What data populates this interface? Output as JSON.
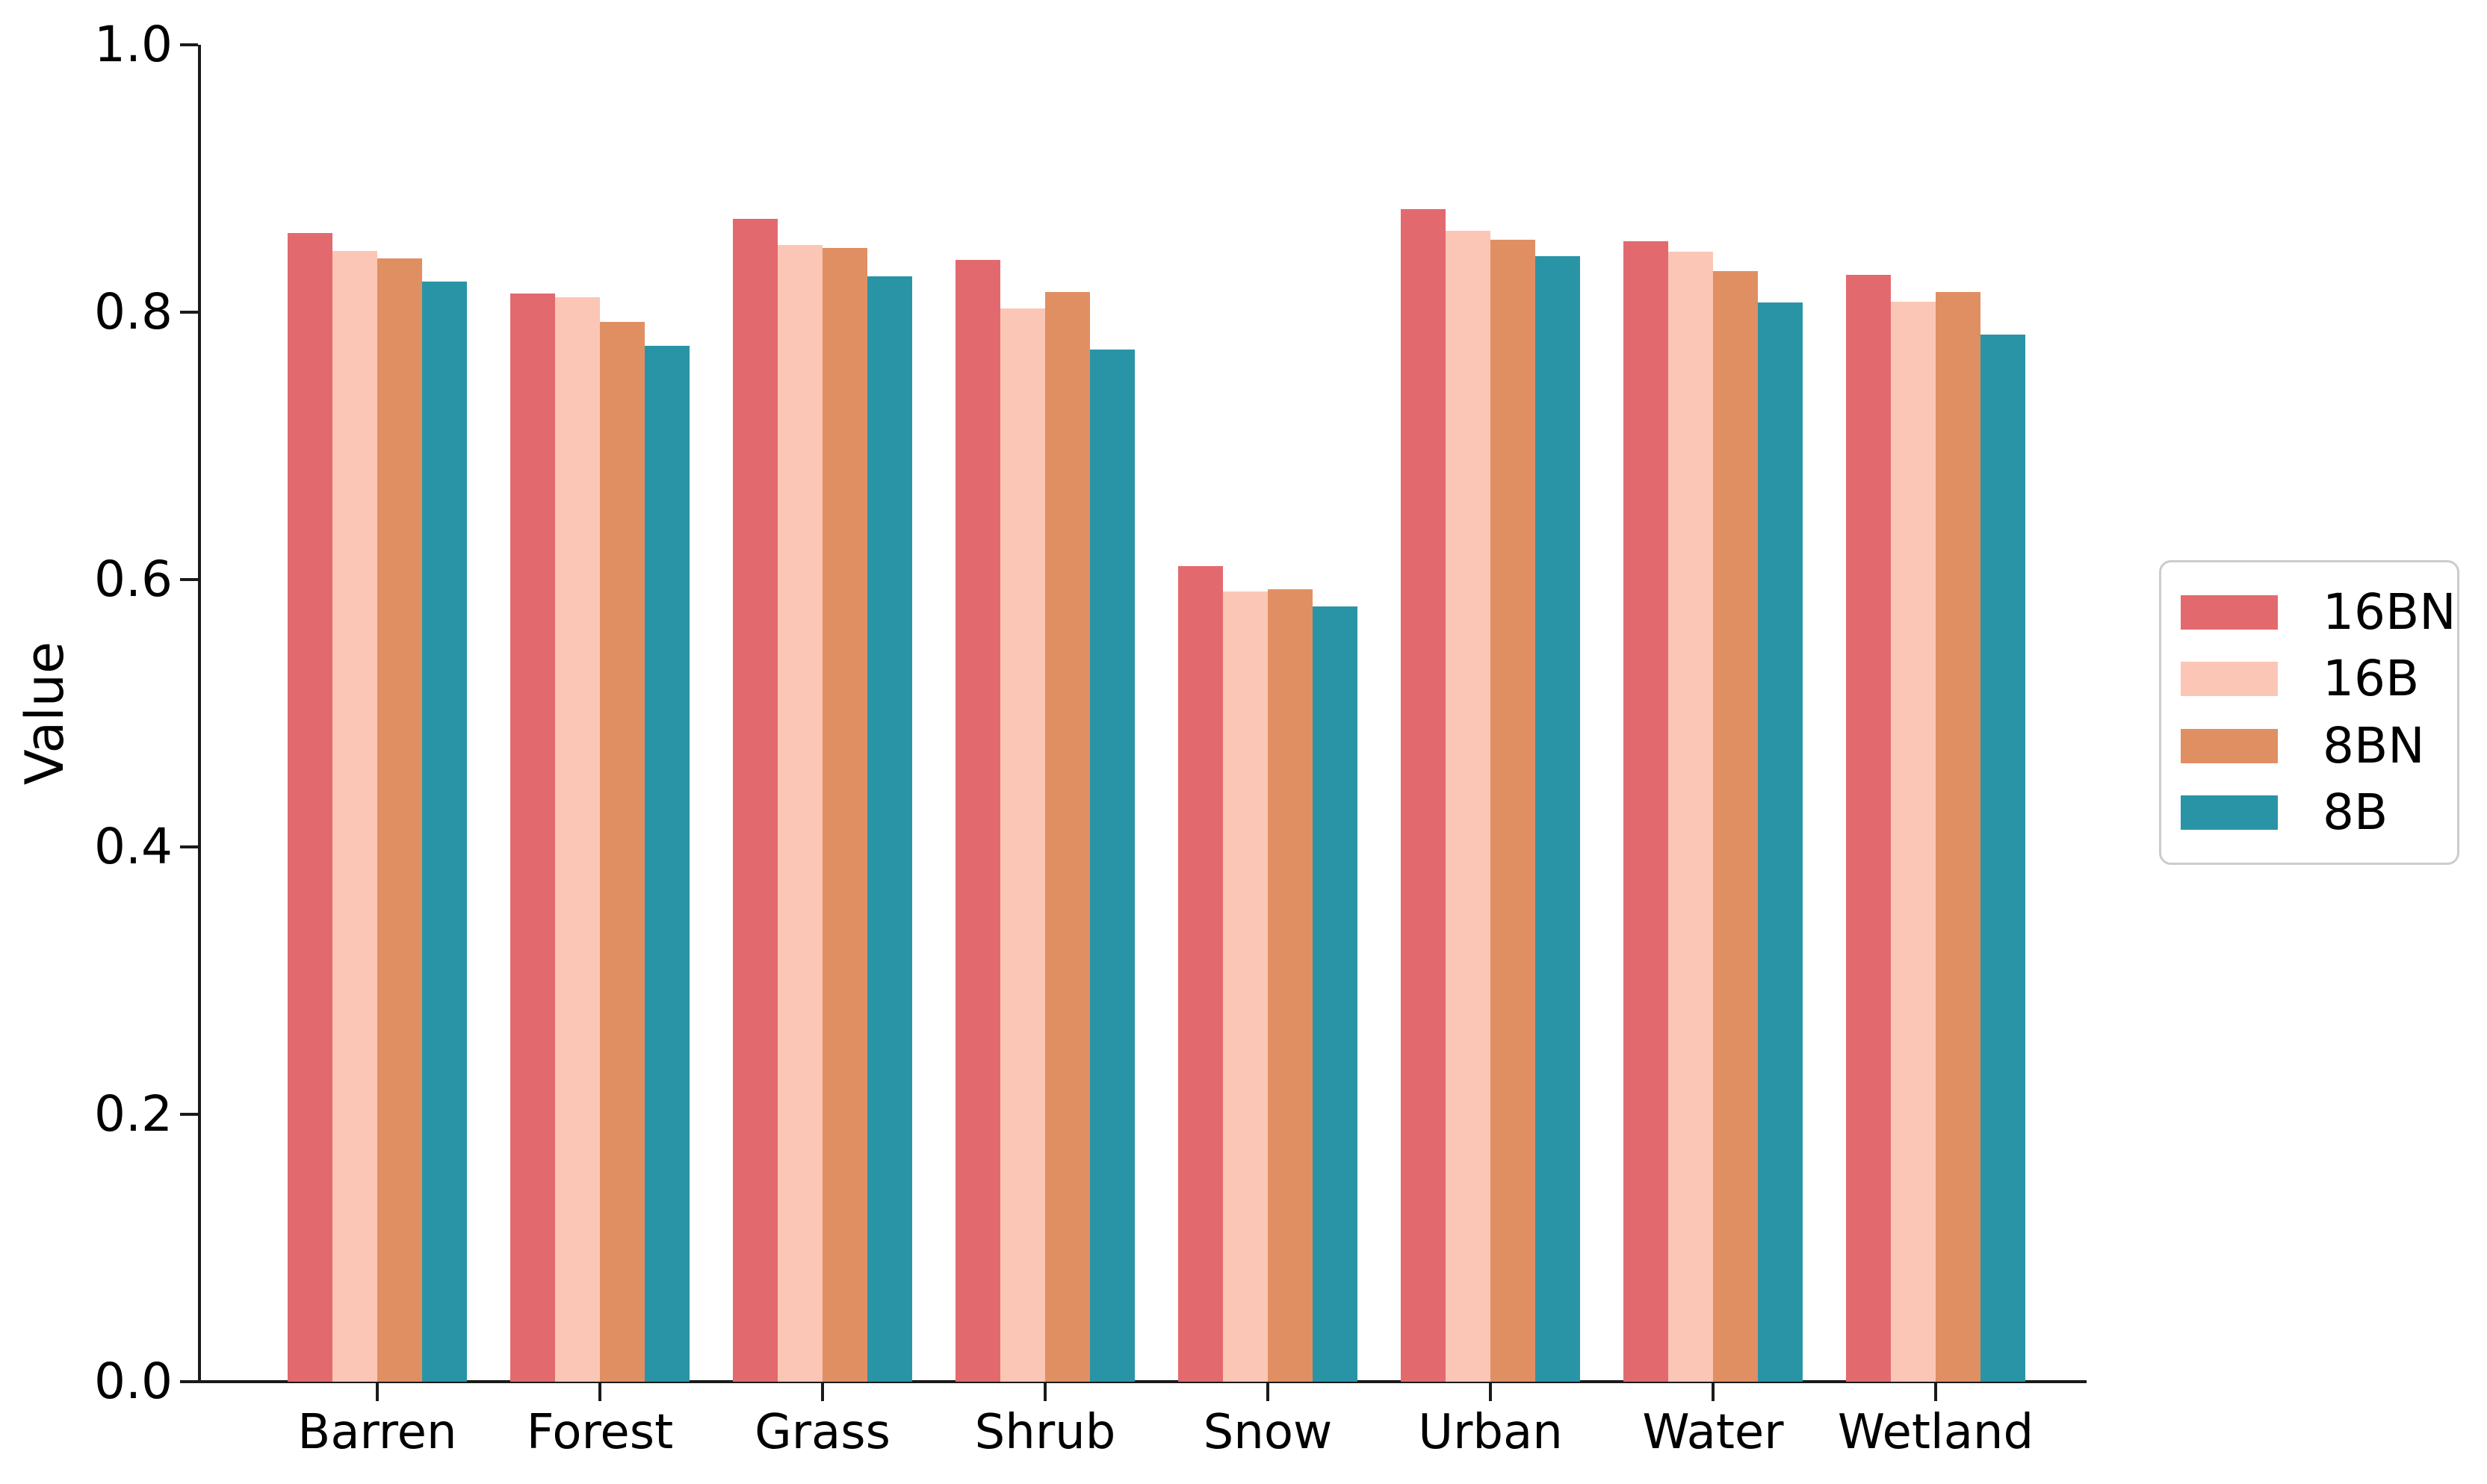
{
  "chart_data": {
    "type": "bar",
    "title": "",
    "xlabel": "",
    "ylabel": "Value",
    "ylim": [
      0.0,
      1.0
    ],
    "ytick_labels": [
      "0.0",
      "0.2",
      "0.4",
      "0.6",
      "0.8",
      "1.0"
    ],
    "grid": false,
    "legend_position": "right-center",
    "categories": [
      "Barren",
      "Forest",
      "Grass",
      "Shrub",
      "Snow",
      "Urban",
      "Water",
      "Wetland"
    ],
    "series": [
      {
        "name": "16BN",
        "color": "#E26A6E",
        "values": [
          0.859,
          0.814,
          0.87,
          0.839,
          0.61,
          0.877,
          0.853,
          0.828
        ]
      },
      {
        "name": "16B",
        "color": "#FBC6B5",
        "values": [
          0.846,
          0.811,
          0.85,
          0.803,
          0.591,
          0.861,
          0.845,
          0.808
        ]
      },
      {
        "name": "8BN",
        "color": "#E08F63",
        "values": [
          0.84,
          0.793,
          0.848,
          0.815,
          0.593,
          0.854,
          0.831,
          0.815
        ]
      },
      {
        "name": "8B",
        "color": "#2A94A7",
        "values": [
          0.823,
          0.775,
          0.827,
          0.772,
          0.58,
          0.842,
          0.807,
          0.783
        ]
      }
    ]
  },
  "legend": {
    "items": [
      {
        "label": "16BN"
      },
      {
        "label": "16B"
      },
      {
        "label": "8BN"
      },
      {
        "label": "8B"
      }
    ]
  }
}
